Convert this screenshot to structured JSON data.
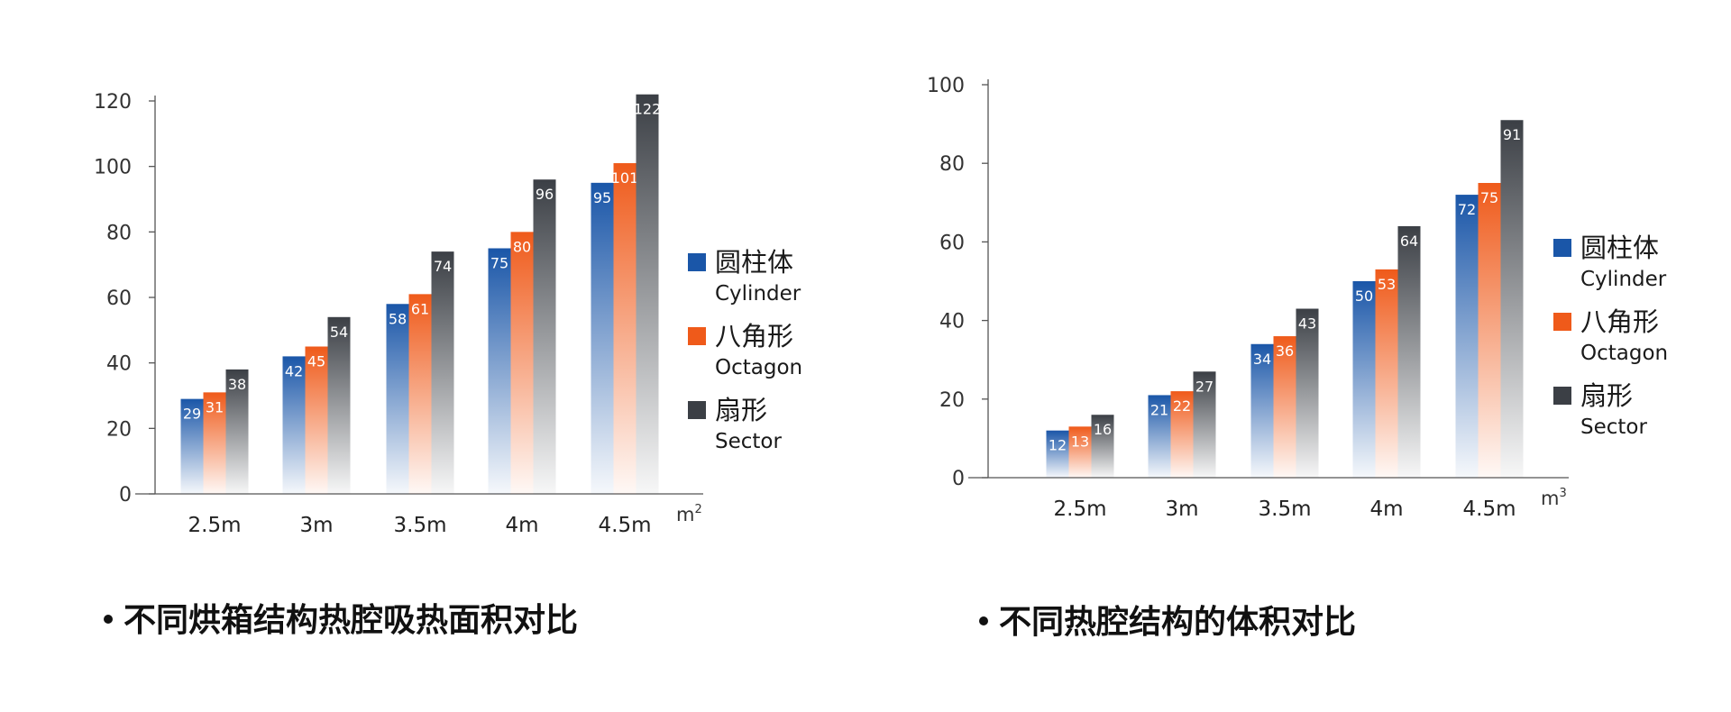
{
  "colors": {
    "cylinder": "#1a56a8",
    "octagon": "#ef5a1a",
    "sector": "#3b3f45",
    "axis": "#555555"
  },
  "chart_data": [
    {
      "type": "bar",
      "categories": [
        "2.5m",
        "3m",
        "3.5m",
        "4m",
        "4.5m"
      ],
      "unit_base": "m",
      "unit_sup": "2",
      "ylim": [
        0,
        120
      ],
      "yticks": [
        0,
        20,
        40,
        60,
        80,
        100,
        120
      ],
      "grid": false,
      "legend_position": "right",
      "series": [
        {
          "key": "cylinder",
          "name_cn": "圆柱体",
          "name_en": "Cylinder",
          "values": [
            29,
            42,
            58,
            75,
            95
          ]
        },
        {
          "key": "octagon",
          "name_cn": "八角形",
          "name_en": "Octagon",
          "values": [
            31,
            45,
            61,
            80,
            101
          ]
        },
        {
          "key": "sector",
          "name_cn": "扇形",
          "name_en": "Sector",
          "values": [
            38,
            54,
            74,
            96,
            122
          ]
        }
      ],
      "caption": "不同烘箱结构热腔吸热面积对比"
    },
    {
      "type": "bar",
      "categories": [
        "2.5m",
        "3m",
        "3.5m",
        "4m",
        "4.5m"
      ],
      "unit_base": "m",
      "unit_sup": "3",
      "ylim": [
        0,
        100
      ],
      "yticks": [
        0,
        20,
        40,
        60,
        80,
        100
      ],
      "grid": false,
      "legend_position": "right",
      "series": [
        {
          "key": "cylinder",
          "name_cn": "圆柱体",
          "name_en": "Cylinder",
          "values": [
            12,
            21,
            34,
            50,
            72
          ]
        },
        {
          "key": "octagon",
          "name_cn": "八角形",
          "name_en": "Octagon",
          "values": [
            13,
            22,
            36,
            53,
            75
          ]
        },
        {
          "key": "sector",
          "name_cn": "扇形",
          "name_en": "Sector",
          "values": [
            16,
            27,
            43,
            64,
            91
          ]
        }
      ],
      "caption": "不同热腔结构的体积对比"
    }
  ]
}
